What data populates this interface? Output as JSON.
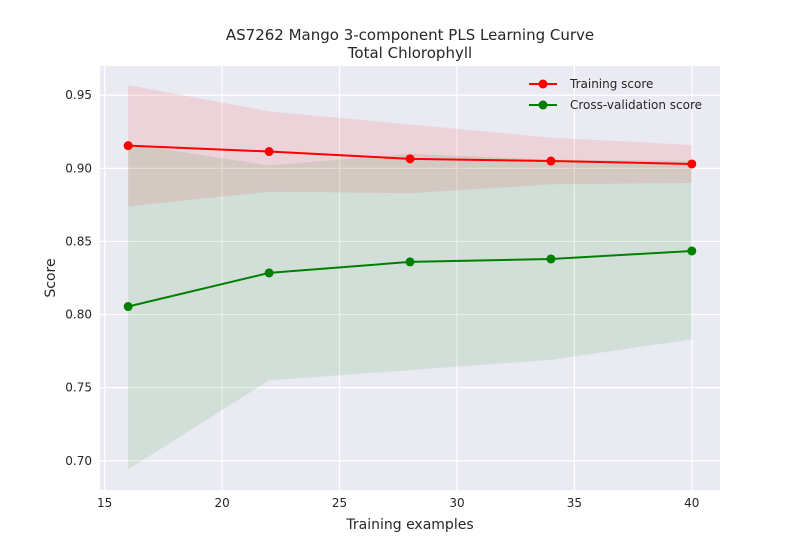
{
  "chart_data": {
    "type": "line",
    "title": "AS7262 Mango 3-component PLS Learning Curve",
    "subtitle": "Total Chlorophyll",
    "xlabel": "Training examples",
    "ylabel": "Score",
    "xlim": [
      14.8,
      41.2
    ],
    "ylim": [
      0.68,
      0.97
    ],
    "xticks": [
      15,
      20,
      25,
      30,
      35,
      40
    ],
    "yticks": [
      0.7,
      0.75,
      0.8,
      0.85,
      0.9,
      0.95
    ],
    "xtick_labels": [
      "15",
      "20",
      "25",
      "30",
      "35",
      "40"
    ],
    "ytick_labels": [
      "0.70",
      "0.75",
      "0.80",
      "0.85",
      "0.90",
      "0.95"
    ],
    "grid": true,
    "legend_position": "top-right",
    "x": [
      16,
      22,
      28,
      34,
      40
    ],
    "series": [
      {
        "name": "Training score",
        "color": "#ff0000",
        "values": [
          0.9155,
          0.9115,
          0.9065,
          0.905,
          0.903
        ],
        "band_upper": [
          0.957,
          0.939,
          0.93,
          0.921,
          0.916
        ],
        "band_lower": [
          0.874,
          0.884,
          0.883,
          0.889,
          0.89
        ]
      },
      {
        "name": "Cross-validation score",
        "color": "#008000",
        "values": [
          0.8055,
          0.8285,
          0.836,
          0.838,
          0.8435
        ],
        "band_upper": [
          0.917,
          0.902,
          0.91,
          0.906,
          0.905
        ],
        "band_lower": [
          0.694,
          0.755,
          0.762,
          0.769,
          0.783
        ]
      }
    ]
  }
}
